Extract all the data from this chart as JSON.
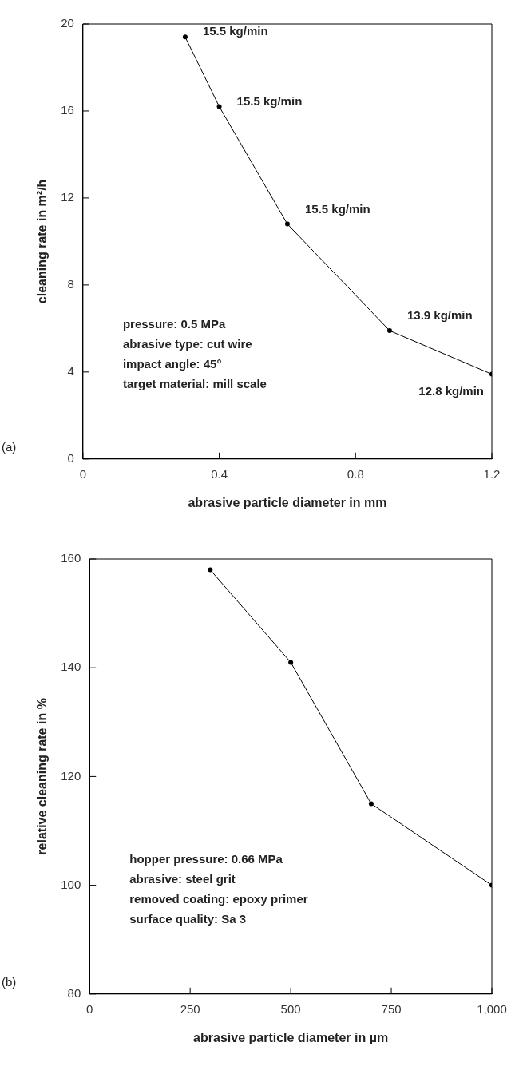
{
  "chart_data": [
    {
      "type": "line",
      "xlabel": "abrasive particle diameter in mm",
      "ylabel": "cleaning rate in m²/h",
      "x": [
        0.3,
        0.4,
        0.6,
        0.9,
        1.2
      ],
      "series": [
        {
          "color": "#000000",
          "values": [
            19.4,
            16.2,
            10.8,
            5.9,
            3.9
          ]
        }
      ],
      "xlim": [
        0,
        1.2
      ],
      "xticks": [
        0,
        0.4,
        0.8,
        1.2
      ],
      "ylim": [
        0,
        20
      ],
      "yticks": [
        0,
        4,
        8,
        12,
        16,
        20
      ],
      "grid": false,
      "legend": false,
      "marker": "circle",
      "line_style": "solid",
      "annotations": [
        "(a)",
        "pressure: 0.5 MPa",
        "abrasive type: cut wire",
        "impact angle: 45°",
        "target material: mill scale",
        {
          "text": "15.5 kg/min",
          "x": 0.3,
          "y": 19.4
        },
        {
          "text": "15.5 kg/min",
          "x": 0.4,
          "y": 16.2
        },
        {
          "text": "15.5 kg/min",
          "x": 0.6,
          "y": 10.8
        },
        {
          "text": "13.9 kg/min",
          "x": 0.9,
          "y": 5.9
        },
        {
          "text": "12.8 kg/min",
          "x": 1.2,
          "y": 3.9
        }
      ]
    },
    {
      "type": "line",
      "xlabel": "abrasive particle diameter in µm",
      "ylabel": "relative cleaning rate in %",
      "x": [
        300,
        500,
        700,
        1000
      ],
      "series": [
        {
          "color": "#000000",
          "values": [
            158,
            141,
            115,
            100
          ]
        }
      ],
      "xlim": [
        0,
        1000
      ],
      "xticks": [
        0,
        250,
        500,
        750,
        {
          "value": 1000,
          "label": "1,000"
        }
      ],
      "ylim": [
        80,
        160
      ],
      "yticks": [
        80,
        100,
        120,
        140,
        160
      ],
      "grid": false,
      "legend": false,
      "marker": "circle",
      "line_style": "solid",
      "annotations": [
        "(b)",
        "hopper pressure: 0.66 MPa",
        "abrasive: steel grit",
        "removed coating: epoxy primer",
        "surface quality: Sa 3"
      ]
    }
  ]
}
